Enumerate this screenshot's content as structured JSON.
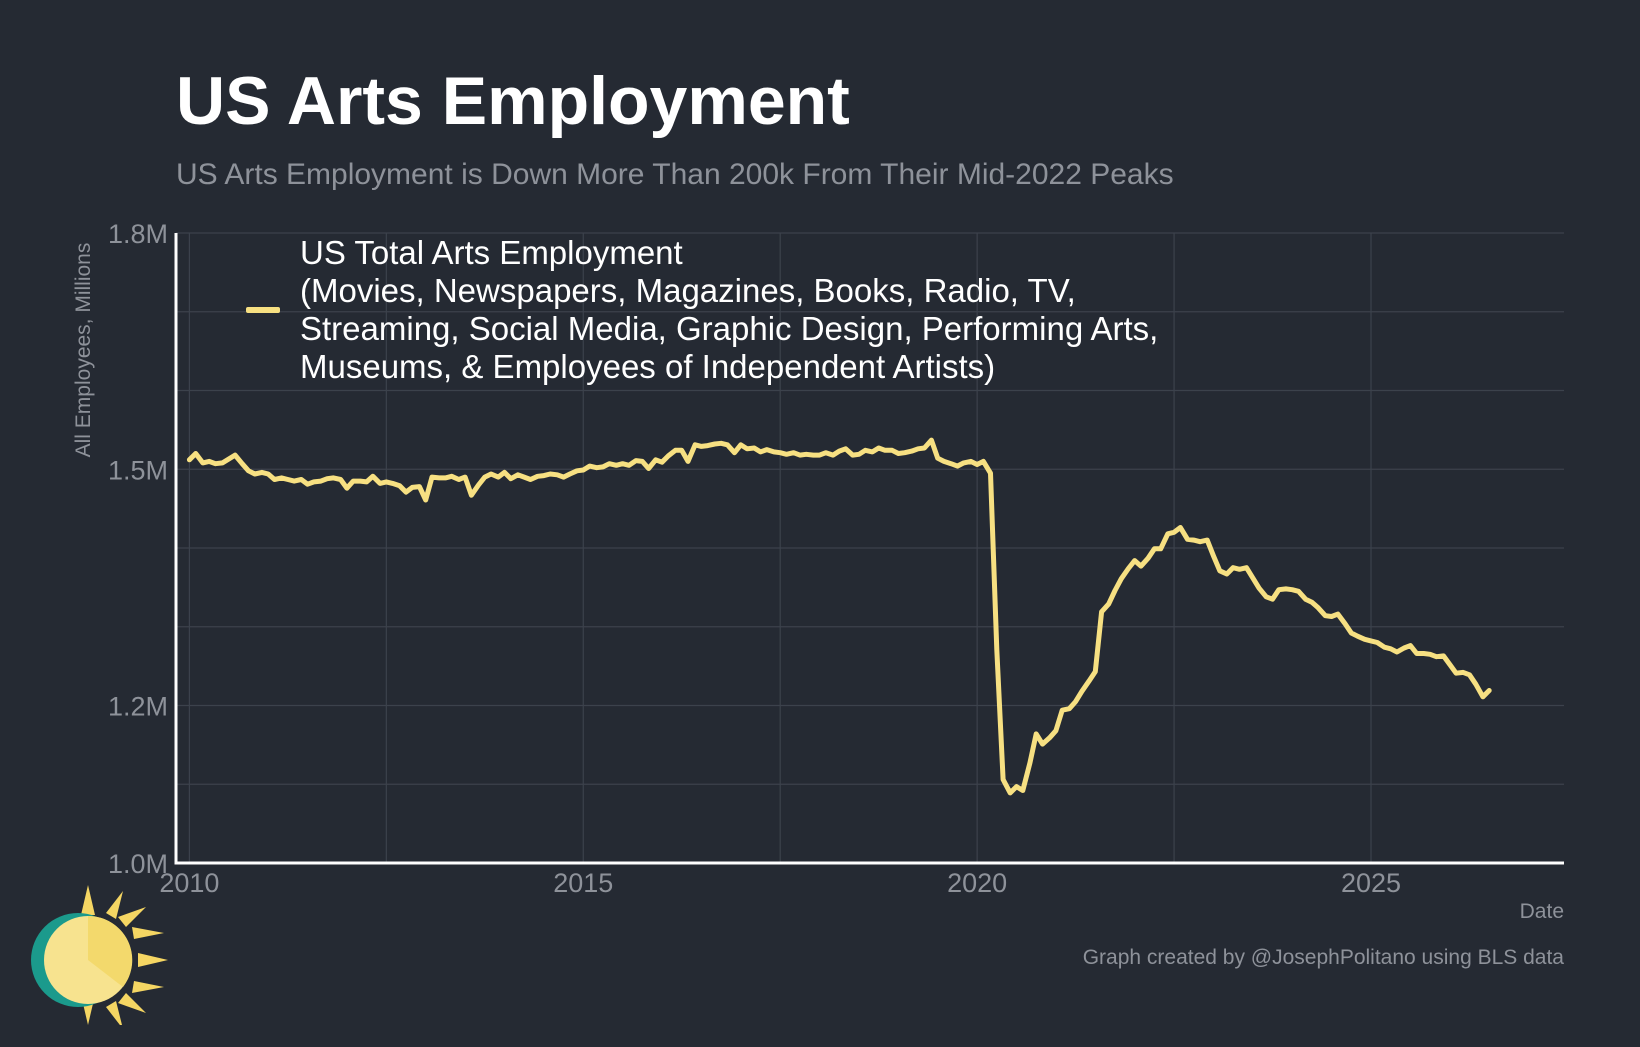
{
  "title": "US Arts Employment",
  "subtitle": "US Arts Employment is Down More Than 200k From Their Mid-2022 Peaks",
  "credit": "Graph created by @JosephPolitano using BLS data",
  "colors": {
    "background": "#252a33",
    "line": "#f7e082",
    "grid": "#3c424c",
    "axis": "#ffffff",
    "muted_text": "#8e929a"
  },
  "chart_data": {
    "type": "line",
    "xlabel": "Date",
    "ylabel": "All Employees, Millions",
    "xlim": [
      2009.83,
      2027.45
    ],
    "ylim": [
      1.0,
      1.8
    ],
    "x_ticks": [
      2010,
      2015,
      2020,
      2025
    ],
    "x_tick_labels": [
      "2010",
      "2015",
      "2020",
      "2025"
    ],
    "y_ticks": [
      1.0,
      1.2,
      1.5,
      1.8
    ],
    "y_tick_labels": [
      "1.0M",
      "1.2M",
      "1.5M",
      "1.8M"
    ],
    "y_minor_grid": [
      1.1,
      1.3,
      1.4,
      1.6,
      1.7
    ],
    "grid": true,
    "legend_position": "top-left",
    "series": [
      {
        "name": "US Total Arts Employment\n(Movies, Newspapers, Magazines, Books, Radio, TV, Streaming, Social Media, Graphic Design, Performing Arts, Museums, & Employees of Independent Artists)",
        "points": [
          [
            2010.0,
            1.512
          ],
          [
            2010.08,
            1.52
          ],
          [
            2010.17,
            1.508
          ],
          [
            2010.25,
            1.51
          ],
          [
            2010.33,
            1.507
          ],
          [
            2010.42,
            1.508
          ],
          [
            2010.5,
            1.513
          ],
          [
            2010.58,
            1.518
          ],
          [
            2010.67,
            1.507
          ],
          [
            2010.75,
            1.498
          ],
          [
            2010.83,
            1.494
          ],
          [
            2010.92,
            1.496
          ],
          [
            2011.0,
            1.494
          ],
          [
            2011.08,
            1.487
          ],
          [
            2011.17,
            1.489
          ],
          [
            2011.25,
            1.487
          ],
          [
            2011.33,
            1.485
          ],
          [
            2011.42,
            1.487
          ],
          [
            2011.5,
            1.481
          ],
          [
            2011.58,
            1.484
          ],
          [
            2011.67,
            1.485
          ],
          [
            2011.75,
            1.488
          ],
          [
            2011.83,
            1.489
          ],
          [
            2011.92,
            1.487
          ],
          [
            2012.0,
            1.476
          ],
          [
            2012.08,
            1.485
          ],
          [
            2012.17,
            1.485
          ],
          [
            2012.25,
            1.484
          ],
          [
            2012.33,
            1.491
          ],
          [
            2012.42,
            1.482
          ],
          [
            2012.5,
            1.484
          ],
          [
            2012.58,
            1.482
          ],
          [
            2012.67,
            1.479
          ],
          [
            2012.75,
            1.471
          ],
          [
            2012.83,
            1.477
          ],
          [
            2012.92,
            1.478
          ],
          [
            2013.0,
            1.461
          ],
          [
            2013.08,
            1.49
          ],
          [
            2013.17,
            1.489
          ],
          [
            2013.25,
            1.489
          ],
          [
            2013.33,
            1.491
          ],
          [
            2013.42,
            1.487
          ],
          [
            2013.5,
            1.49
          ],
          [
            2013.58,
            1.467
          ],
          [
            2013.67,
            1.48
          ],
          [
            2013.75,
            1.49
          ],
          [
            2013.83,
            1.494
          ],
          [
            2013.92,
            1.49
          ],
          [
            2014.0,
            1.496
          ],
          [
            2014.08,
            1.488
          ],
          [
            2014.17,
            1.493
          ],
          [
            2014.25,
            1.49
          ],
          [
            2014.33,
            1.487
          ],
          [
            2014.42,
            1.491
          ],
          [
            2014.5,
            1.492
          ],
          [
            2014.58,
            1.494
          ],
          [
            2014.67,
            1.493
          ],
          [
            2014.75,
            1.49
          ],
          [
            2014.83,
            1.494
          ],
          [
            2014.92,
            1.498
          ],
          [
            2015.0,
            1.499
          ],
          [
            2015.08,
            1.504
          ],
          [
            2015.17,
            1.502
          ],
          [
            2015.25,
            1.503
          ],
          [
            2015.33,
            1.507
          ],
          [
            2015.42,
            1.505
          ],
          [
            2015.5,
            1.507
          ],
          [
            2015.58,
            1.505
          ],
          [
            2015.67,
            1.511
          ],
          [
            2015.75,
            1.51
          ],
          [
            2015.83,
            1.501
          ],
          [
            2015.92,
            1.512
          ],
          [
            2016.0,
            1.509
          ],
          [
            2016.08,
            1.517
          ],
          [
            2016.17,
            1.524
          ],
          [
            2016.25,
            1.524
          ],
          [
            2016.33,
            1.51
          ],
          [
            2016.42,
            1.531
          ],
          [
            2016.5,
            1.529
          ],
          [
            2016.58,
            1.53
          ],
          [
            2016.67,
            1.532
          ],
          [
            2016.75,
            1.533
          ],
          [
            2016.83,
            1.531
          ],
          [
            2016.92,
            1.521
          ],
          [
            2017.0,
            1.531
          ],
          [
            2017.08,
            1.526
          ],
          [
            2017.17,
            1.527
          ],
          [
            2017.25,
            1.522
          ],
          [
            2017.33,
            1.525
          ],
          [
            2017.42,
            1.522
          ],
          [
            2017.5,
            1.521
          ],
          [
            2017.58,
            1.519
          ],
          [
            2017.67,
            1.521
          ],
          [
            2017.75,
            1.518
          ],
          [
            2017.83,
            1.519
          ],
          [
            2017.92,
            1.518
          ],
          [
            2018.0,
            1.518
          ],
          [
            2018.08,
            1.521
          ],
          [
            2018.17,
            1.518
          ],
          [
            2018.25,
            1.523
          ],
          [
            2018.33,
            1.526
          ],
          [
            2018.42,
            1.518
          ],
          [
            2018.5,
            1.519
          ],
          [
            2018.58,
            1.524
          ],
          [
            2018.67,
            1.522
          ],
          [
            2018.75,
            1.527
          ],
          [
            2018.83,
            1.524
          ],
          [
            2018.92,
            1.524
          ],
          [
            2019.0,
            1.52
          ],
          [
            2019.08,
            1.521
          ],
          [
            2019.17,
            1.523
          ],
          [
            2019.25,
            1.526
          ],
          [
            2019.33,
            1.527
          ],
          [
            2019.42,
            1.537
          ],
          [
            2019.5,
            1.514
          ],
          [
            2019.58,
            1.51
          ],
          [
            2019.67,
            1.507
          ],
          [
            2019.75,
            1.504
          ],
          [
            2019.83,
            1.508
          ],
          [
            2019.92,
            1.51
          ],
          [
            2020.0,
            1.506
          ],
          [
            2020.08,
            1.51
          ],
          [
            2020.17,
            1.495
          ],
          [
            2020.25,
            1.271
          ],
          [
            2020.33,
            1.106
          ],
          [
            2020.42,
            1.089
          ],
          [
            2020.5,
            1.097
          ],
          [
            2020.58,
            1.092
          ],
          [
            2020.67,
            1.127
          ],
          [
            2020.75,
            1.164
          ],
          [
            2020.83,
            1.151
          ],
          [
            2020.92,
            1.159
          ],
          [
            2021.0,
            1.168
          ],
          [
            2021.08,
            1.194
          ],
          [
            2021.17,
            1.196
          ],
          [
            2021.25,
            1.205
          ],
          [
            2021.33,
            1.218
          ],
          [
            2021.42,
            1.231
          ],
          [
            2021.5,
            1.243
          ],
          [
            2021.58,
            1.319
          ],
          [
            2021.67,
            1.329
          ],
          [
            2021.75,
            1.346
          ],
          [
            2021.83,
            1.361
          ],
          [
            2021.92,
            1.374
          ],
          [
            2022.0,
            1.384
          ],
          [
            2022.08,
            1.377
          ],
          [
            2022.17,
            1.387
          ],
          [
            2022.25,
            1.399
          ],
          [
            2022.33,
            1.399
          ],
          [
            2022.42,
            1.418
          ],
          [
            2022.5,
            1.42
          ],
          [
            2022.58,
            1.426
          ],
          [
            2022.67,
            1.411
          ],
          [
            2022.75,
            1.41
          ],
          [
            2022.83,
            1.408
          ],
          [
            2022.92,
            1.41
          ],
          [
            2023.0,
            1.39
          ],
          [
            2023.08,
            1.371
          ],
          [
            2023.17,
            1.367
          ],
          [
            2023.25,
            1.375
          ],
          [
            2023.33,
            1.373
          ],
          [
            2023.42,
            1.375
          ],
          [
            2023.5,
            1.362
          ],
          [
            2023.58,
            1.349
          ],
          [
            2023.67,
            1.338
          ],
          [
            2023.75,
            1.335
          ],
          [
            2023.83,
            1.347
          ],
          [
            2023.92,
            1.348
          ],
          [
            2024.0,
            1.347
          ],
          [
            2024.08,
            1.345
          ],
          [
            2024.17,
            1.335
          ],
          [
            2024.25,
            1.331
          ],
          [
            2024.33,
            1.324
          ],
          [
            2024.42,
            1.314
          ],
          [
            2024.5,
            1.313
          ],
          [
            2024.58,
            1.316
          ],
          [
            2024.67,
            1.304
          ],
          [
            2024.75,
            1.292
          ],
          [
            2024.83,
            1.288
          ],
          [
            2024.92,
            1.284
          ],
          [
            2025.0,
            1.282
          ],
          [
            2025.08,
            1.28
          ],
          [
            2025.17,
            1.274
          ],
          [
            2025.25,
            1.272
          ],
          [
            2025.33,
            1.268
          ],
          [
            2025.42,
            1.273
          ],
          [
            2025.5,
            1.276
          ],
          [
            2025.58,
            1.266
          ],
          [
            2025.67,
            1.266
          ],
          [
            2025.75,
            1.265
          ],
          [
            2025.83,
            1.262
          ],
          [
            2025.92,
            1.263
          ],
          [
            2026.0,
            1.252
          ],
          [
            2026.08,
            1.241
          ],
          [
            2026.17,
            1.242
          ],
          [
            2026.25,
            1.239
          ],
          [
            2026.33,
            1.227
          ],
          [
            2026.42,
            1.211
          ],
          [
            2026.5,
            1.219
          ]
        ]
      }
    ]
  }
}
